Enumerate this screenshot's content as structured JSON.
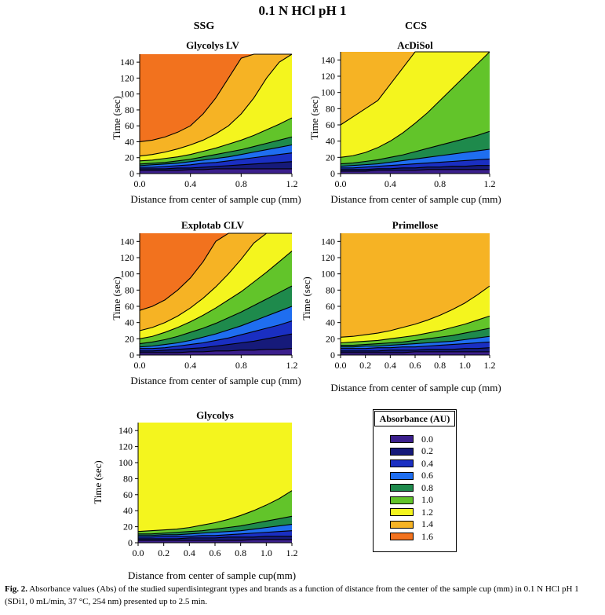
{
  "figure": {
    "title": "0.1 N HCl pH 1",
    "column_titles": [
      "SSG",
      "CCS"
    ],
    "caption_label": "Fig. 2.",
    "caption_text": "Absorbance values (Abs) of the studied superdisintegrant types and brands as a function of distance from the center of the sample cup (mm) in 0.1 N HCl pH 1 (SDi1, 0 mL/min, 37 °C, 254 nm) presented up to 2.5 min."
  },
  "legend": {
    "title": "Absorbance (AU)",
    "items": [
      {
        "label": "0.0",
        "color": "#3b1f8c"
      },
      {
        "label": "0.2",
        "color": "#161a7a"
      },
      {
        "label": "0.4",
        "color": "#1a2fc2"
      },
      {
        "label": "0.6",
        "color": "#1f6ef0"
      },
      {
        "label": "0.8",
        "color": "#1e8a4c"
      },
      {
        "label": "1.0",
        "color": "#62c42a"
      },
      {
        "label": "1.2",
        "color": "#f4f51e"
      },
      {
        "label": "1.4",
        "color": "#f6b324"
      },
      {
        "label": "1.6",
        "color": "#f2721e"
      }
    ]
  },
  "chart_data": [
    {
      "type": "heatmap",
      "title": "Glycolys LV",
      "xlabel": "Distance from center of sample cup (mm)",
      "ylabel": "Time (sec)",
      "xlim": [
        0,
        1.2
      ],
      "ylim": [
        0,
        150
      ],
      "xticks": [
        "0.0",
        "0.4",
        "0.8",
        "1.2"
      ],
      "yticks": [
        "0",
        "20",
        "40",
        "60",
        "80",
        "100",
        "120",
        "140"
      ],
      "regions": [
        {
          "level": 0.0,
          "top": [
            4,
            4,
            4,
            4,
            5,
            5,
            6,
            6,
            6,
            6,
            6,
            6,
            6
          ]
        },
        {
          "level": 0.2,
          "top": [
            6,
            6,
            6,
            7,
            7,
            8,
            9,
            10,
            11,
            12,
            13,
            14,
            15
          ]
        },
        {
          "level": 0.4,
          "top": [
            8,
            8,
            9,
            10,
            11,
            13,
            14,
            16,
            18,
            20,
            22,
            24,
            26
          ]
        },
        {
          "level": 0.6,
          "top": [
            10,
            11,
            12,
            13,
            15,
            17,
            19,
            21,
            24,
            27,
            30,
            33,
            36
          ]
        },
        {
          "level": 0.8,
          "top": [
            12,
            13,
            14,
            16,
            18,
            21,
            24,
            27,
            30,
            34,
            38,
            42,
            46
          ]
        },
        {
          "level": 1.0,
          "top": [
            16,
            17,
            19,
            21,
            24,
            28,
            32,
            37,
            42,
            48,
            55,
            62,
            70
          ]
        },
        {
          "level": 1.2,
          "top": [
            22,
            24,
            27,
            31,
            36,
            42,
            50,
            60,
            75,
            95,
            120,
            140,
            150
          ]
        },
        {
          "level": 1.4,
          "top": [
            40,
            42,
            46,
            52,
            60,
            75,
            95,
            120,
            145,
            150,
            150,
            150,
            150
          ]
        },
        {
          "level": 1.6,
          "top": [
            150,
            150,
            150,
            150,
            150,
            150,
            150,
            150,
            150,
            150,
            150,
            150,
            150
          ]
        }
      ]
    },
    {
      "type": "heatmap",
      "title": "AcDiSol",
      "xlabel": "Distance from center of sample cup (mm)",
      "ylabel": "Time (sec)",
      "xlim": [
        0,
        1.2
      ],
      "ylim": [
        0,
        150
      ],
      "xticks": [
        "0.0",
        "0.4",
        "0.8",
        "1.2"
      ],
      "yticks": [
        "0",
        "20",
        "40",
        "60",
        "80",
        "100",
        "120",
        "140"
      ],
      "regions": [
        {
          "level": 0.0,
          "top": [
            3,
            3,
            3,
            4,
            4,
            4,
            4,
            5,
            5,
            5,
            5,
            5,
            5
          ]
        },
        {
          "level": 0.2,
          "top": [
            5,
            5,
            5,
            6,
            6,
            7,
            7,
            8,
            8,
            9,
            9,
            10,
            10
          ]
        },
        {
          "level": 0.4,
          "top": [
            7,
            7,
            8,
            9,
            10,
            11,
            12,
            13,
            14,
            15,
            16,
            17,
            18
          ]
        },
        {
          "level": 0.6,
          "top": [
            9,
            10,
            11,
            12,
            14,
            16,
            18,
            20,
            22,
            24,
            26,
            28,
            30
          ]
        },
        {
          "level": 0.8,
          "top": [
            12,
            13,
            15,
            17,
            20,
            23,
            27,
            31,
            35,
            39,
            43,
            47,
            52
          ]
        },
        {
          "level": 1.0,
          "top": [
            20,
            22,
            26,
            32,
            40,
            50,
            62,
            75,
            90,
            105,
            120,
            135,
            150
          ]
        },
        {
          "level": 1.2,
          "top": [
            60,
            70,
            80,
            90,
            110,
            130,
            150,
            150,
            150,
            150,
            150,
            150,
            150
          ]
        },
        {
          "level": 1.4,
          "top": [
            150,
            150,
            150,
            150,
            150,
            150,
            150,
            150,
            150,
            150,
            150,
            150,
            150
          ]
        }
      ]
    },
    {
      "type": "heatmap",
      "title": "Explotab CLV",
      "xlabel": "Distance from center of sample cup (mm)",
      "ylabel": "Time (sec)",
      "xlim": [
        0,
        1.2
      ],
      "ylim": [
        0,
        150
      ],
      "xticks": [
        "0.0",
        "0.4",
        "0.8",
        "1.2"
      ],
      "yticks": [
        "0",
        "20",
        "40",
        "60",
        "80",
        "100",
        "120",
        "140"
      ],
      "regions": [
        {
          "level": 0.0,
          "top": [
            3,
            3,
            3,
            3,
            4,
            4,
            5,
            5,
            6,
            6,
            7,
            7,
            8
          ]
        },
        {
          "level": 0.2,
          "top": [
            5,
            5,
            6,
            7,
            8,
            9,
            11,
            13,
            15,
            17,
            20,
            23,
            26
          ]
        },
        {
          "level": 0.4,
          "top": [
            8,
            8,
            9,
            11,
            13,
            15,
            18,
            21,
            25,
            29,
            33,
            37,
            42
          ]
        },
        {
          "level": 0.6,
          "top": [
            10,
            11,
            13,
            15,
            18,
            22,
            26,
            31,
            36,
            42,
            48,
            54,
            60
          ]
        },
        {
          "level": 0.8,
          "top": [
            14,
            16,
            19,
            23,
            28,
            33,
            39,
            46,
            53,
            61,
            69,
            77,
            85
          ]
        },
        {
          "level": 1.0,
          "top": [
            20,
            23,
            28,
            34,
            41,
            49,
            58,
            68,
            78,
            90,
            102,
            115,
            128
          ]
        },
        {
          "level": 1.2,
          "top": [
            30,
            34,
            40,
            48,
            58,
            70,
            84,
            100,
            118,
            138,
            150,
            150,
            150
          ]
        },
        {
          "level": 1.4,
          "top": [
            55,
            60,
            68,
            80,
            95,
            115,
            140,
            150,
            150,
            150,
            150,
            150,
            150
          ]
        },
        {
          "level": 1.6,
          "top": [
            150,
            150,
            150,
            150,
            150,
            150,
            150,
            150,
            150,
            150,
            150,
            150,
            150
          ]
        }
      ]
    },
    {
      "type": "heatmap",
      "title": "Primellose",
      "xlabel": "Distance from center of sample cup (mm)",
      "ylabel": "Time (sec)",
      "xlim": [
        0,
        1.2
      ],
      "ylim": [
        0,
        150
      ],
      "xticks": [
        "0.0",
        "0.2",
        "0.4",
        "0.6",
        "0.8",
        "1.0",
        "1.2"
      ],
      "yticks": [
        "0",
        "20",
        "40",
        "60",
        "80",
        "100",
        "120",
        "140"
      ],
      "regions": [
        {
          "level": 0.0,
          "top": [
            3,
            3,
            3,
            3,
            3,
            3,
            4,
            4,
            4,
            4,
            4,
            4,
            4
          ]
        },
        {
          "level": 0.2,
          "top": [
            5,
            5,
            5,
            5,
            6,
            6,
            6,
            7,
            7,
            7,
            8,
            8,
            9
          ]
        },
        {
          "level": 0.4,
          "top": [
            8,
            8,
            8,
            9,
            9,
            10,
            10,
            11,
            12,
            13,
            14,
            15,
            16
          ]
        },
        {
          "level": 0.6,
          "top": [
            10,
            10,
            11,
            11,
            12,
            13,
            14,
            15,
            16,
            17,
            19,
            21,
            23
          ]
        },
        {
          "level": 0.8,
          "top": [
            12,
            12,
            13,
            14,
            15,
            16,
            18,
            20,
            22,
            24,
            27,
            30,
            33
          ]
        },
        {
          "level": 1.0,
          "top": [
            15,
            16,
            17,
            18,
            20,
            22,
            24,
            27,
            30,
            34,
            38,
            43,
            48
          ]
        },
        {
          "level": 1.2,
          "top": [
            22,
            23,
            25,
            27,
            30,
            34,
            38,
            43,
            49,
            56,
            64,
            74,
            85
          ]
        },
        {
          "level": 1.4,
          "top": [
            150,
            150,
            150,
            150,
            150,
            150,
            150,
            150,
            150,
            150,
            150,
            150,
            150
          ]
        }
      ]
    },
    {
      "type": "heatmap",
      "title": "Glycolys",
      "xlabel": "Distance from center of sample cup(mm)",
      "ylabel": "Time (sec)",
      "xlim": [
        0,
        1.2
      ],
      "ylim": [
        0,
        150
      ],
      "xticks": [
        "0.0",
        "0.2",
        "0.4",
        "0.6",
        "0.8",
        "1.0",
        "1.2"
      ],
      "yticks": [
        "0",
        "20",
        "40",
        "60",
        "80",
        "100",
        "120",
        "140"
      ],
      "regions": [
        {
          "level": 0.0,
          "top": [
            3,
            3,
            3,
            3,
            3,
            3,
            3,
            3,
            3,
            4,
            4,
            4,
            4
          ]
        },
        {
          "level": 0.2,
          "top": [
            5,
            5,
            5,
            5,
            6,
            6,
            6,
            7,
            7,
            7,
            8,
            8,
            8
          ]
        },
        {
          "level": 0.4,
          "top": [
            7,
            7,
            8,
            8,
            8,
            9,
            9,
            10,
            11,
            12,
            13,
            14,
            15
          ]
        },
        {
          "level": 0.6,
          "top": [
            9,
            9,
            10,
            10,
            11,
            12,
            13,
            14,
            15,
            17,
            19,
            21,
            23
          ]
        },
        {
          "level": 0.8,
          "top": [
            11,
            11,
            12,
            13,
            14,
            15,
            17,
            19,
            21,
            24,
            27,
            30,
            33
          ]
        },
        {
          "level": 1.0,
          "top": [
            14,
            15,
            16,
            17,
            19,
            22,
            25,
            29,
            34,
            40,
            47,
            55,
            65
          ]
        },
        {
          "level": 1.2,
          "top": [
            150,
            150,
            150,
            150,
            150,
            150,
            150,
            150,
            150,
            150,
            150,
            150,
            150
          ]
        }
      ]
    }
  ]
}
